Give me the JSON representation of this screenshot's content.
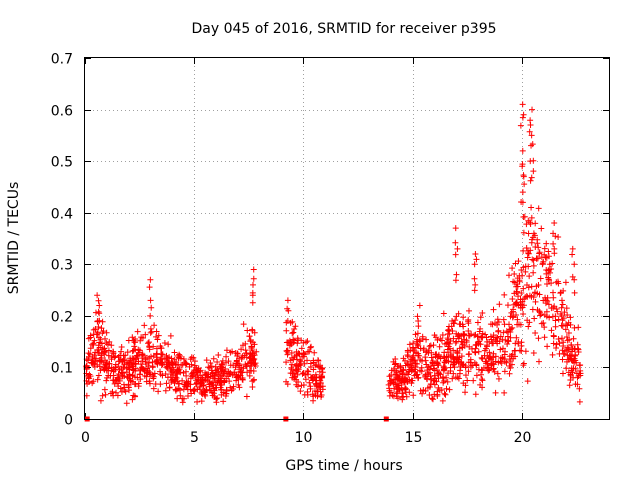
{
  "chart_data": {
    "type": "scatter",
    "title": "Day 045 of 2016, SRMTID for receiver p395",
    "xlabel": "GPS time / hours",
    "ylabel": "SRMTID / TECUs",
    "xlim": [
      0,
      24
    ],
    "ylim": [
      0,
      0.7
    ],
    "xticks": [
      0,
      5,
      10,
      15,
      20
    ],
    "xtick_labels": [
      "0",
      "5",
      "10",
      "15",
      "20"
    ],
    "yticks": [
      0,
      0.1,
      0.2,
      0.3,
      0.4,
      0.5,
      0.6,
      0.7
    ],
    "ytick_labels": [
      "0",
      "0.1",
      "0.2",
      "0.3",
      "0.4",
      "0.5",
      "0.6",
      "0.7"
    ],
    "grid": true,
    "marker": "plus",
    "color": "#ff0000",
    "segments": [
      {
        "x_start": 0.05,
        "x_end": 7.85,
        "profile": [
          [
            0.05,
            0.1
          ],
          [
            0.5,
            0.14
          ],
          [
            1.2,
            0.09
          ],
          [
            2.0,
            0.09
          ],
          [
            2.9,
            0.12
          ],
          [
            3.5,
            0.11
          ],
          [
            4.5,
            0.08
          ],
          [
            5.5,
            0.07
          ],
          [
            6.5,
            0.08
          ],
          [
            7.3,
            0.11
          ],
          [
            7.85,
            0.12
          ]
        ]
      },
      {
        "x_start": 9.2,
        "x_end": 10.9,
        "profile": [
          [
            9.2,
            0.13
          ],
          [
            9.8,
            0.11
          ],
          [
            10.4,
            0.09
          ],
          [
            10.9,
            0.07
          ]
        ]
      },
      {
        "x_start": 13.9,
        "x_end": 22.7,
        "profile": [
          [
            13.9,
            0.07
          ],
          [
            14.5,
            0.08
          ],
          [
            15.2,
            0.11
          ],
          [
            16.0,
            0.1
          ],
          [
            16.8,
            0.13
          ],
          [
            17.6,
            0.14
          ],
          [
            18.4,
            0.13
          ],
          [
            19.2,
            0.15
          ],
          [
            19.8,
            0.2
          ],
          [
            20.4,
            0.3
          ],
          [
            21.0,
            0.25
          ],
          [
            21.6,
            0.22
          ],
          [
            22.2,
            0.13
          ],
          [
            22.7,
            0.1
          ]
        ]
      }
    ],
    "spikes": [
      {
        "x": 0.6,
        "values": [
          0.24,
          0.22,
          0.19
        ]
      },
      {
        "x": 2.95,
        "values": [
          0.27,
          0.23,
          0.2
        ]
      },
      {
        "x": 7.7,
        "values": [
          0.29,
          0.26,
          0.24
        ]
      },
      {
        "x": 9.3,
        "values": [
          0.23,
          0.21,
          0.19
        ]
      },
      {
        "x": 15.3,
        "values": [
          0.22,
          0.19,
          0.18
        ]
      },
      {
        "x": 17.0,
        "values": [
          0.37,
          0.33,
          0.28
        ]
      },
      {
        "x": 17.85,
        "values": [
          0.32,
          0.3,
          0.26
        ]
      },
      {
        "x": 20.05,
        "values": [
          0.61,
          0.59,
          0.52,
          0.49,
          0.47,
          0.44,
          0.42
        ]
      },
      {
        "x": 20.45,
        "values": [
          0.6,
          0.57,
          0.55,
          0.53,
          0.5,
          0.41,
          0.39
        ]
      },
      {
        "x": 21.45,
        "values": [
          0.38,
          0.36,
          0.33
        ]
      },
      {
        "x": 22.35,
        "values": [
          0.33,
          0.3,
          0.27
        ]
      }
    ],
    "zero_markers": [
      0.1,
      9.2,
      13.8
    ]
  }
}
